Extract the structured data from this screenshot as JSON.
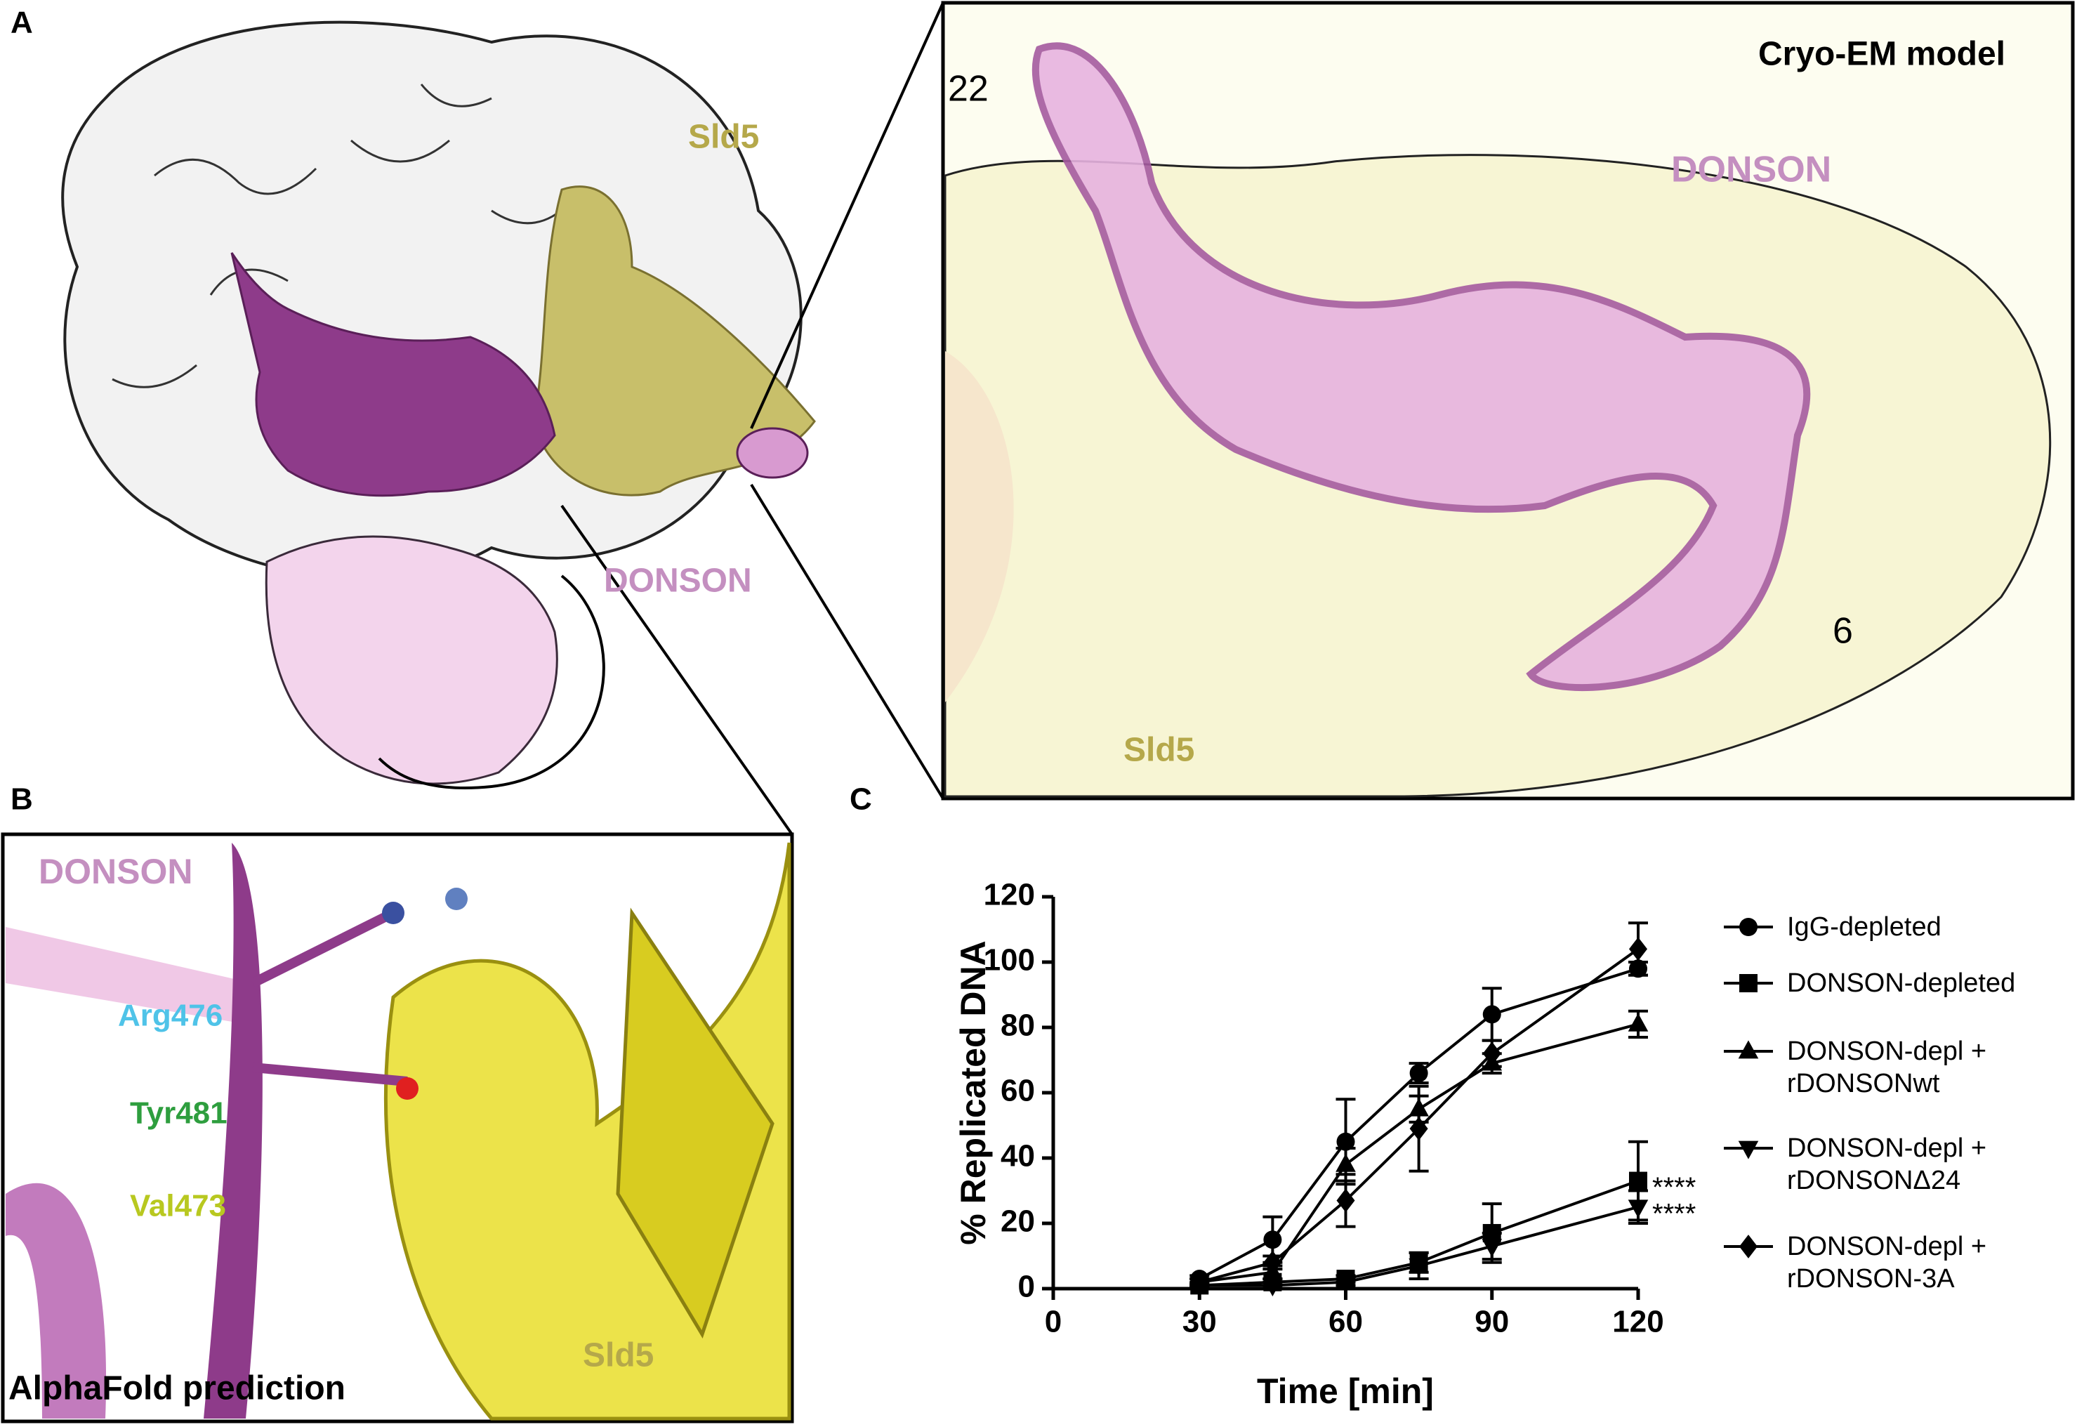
{
  "panels": {
    "a": {
      "label": "A",
      "sld5": "Sld5",
      "donson": "DONSON"
    },
    "zoom": {
      "title": "Cryo-EM model",
      "start": "22",
      "end": "6",
      "donson": "DONSON",
      "sld5": "Sld5"
    },
    "b": {
      "label": "B",
      "donson": "DONSON",
      "residues": [
        "Arg476",
        "Tyr481",
        "Val473"
      ],
      "sld5": "Sld5",
      "caption": "AlphaFold prediction"
    },
    "c": {
      "label": "C"
    }
  },
  "chart_data": {
    "type": "line",
    "xlabel": "Time [min]",
    "ylabel": "% Replicated DNA",
    "xlim": [
      0,
      120
    ],
    "xticks": [
      0,
      30,
      60,
      90,
      120
    ],
    "ylim": [
      0,
      120
    ],
    "yticks": [
      0,
      20,
      40,
      60,
      80,
      100,
      120
    ],
    "x": [
      30,
      45,
      60,
      75,
      90,
      120
    ],
    "series": [
      {
        "name": "IgG-depleted",
        "color": "#000000",
        "marker": "circle",
        "values": [
          3,
          15,
          45,
          66,
          84,
          98
        ],
        "errors": [
          1,
          7,
          13,
          3,
          8,
          2
        ]
      },
      {
        "name": "DONSON-depleted",
        "color": "#000000",
        "marker": "square",
        "values": [
          1,
          2,
          3,
          8,
          17,
          33
        ],
        "errors": [
          0.5,
          1,
          1,
          3,
          9,
          12
        ]
      },
      {
        "name": "DONSON-depl + rDONSONwt",
        "color": "#000000",
        "marker": "triangle-up",
        "values": [
          2,
          5,
          38,
          55,
          69,
          81
        ],
        "errors": [
          1,
          2,
          5,
          4,
          3,
          4
        ]
      },
      {
        "name": "DONSON-depl + rDONSONΔ24",
        "color": "#000000",
        "marker": "triangle-down",
        "values": [
          1,
          1,
          2,
          7,
          13,
          25
        ],
        "errors": [
          0.5,
          1,
          1,
          4,
          4,
          5
        ]
      },
      {
        "name": "DONSON-depl + rDONSON-3A",
        "color": "#000000",
        "marker": "diamond",
        "values": [
          2,
          8,
          27,
          49,
          72,
          104
        ],
        "errors": [
          1,
          2,
          8,
          13,
          4,
          8
        ]
      }
    ],
    "annotations": [
      {
        "text": "****",
        "series": 1
      },
      {
        "text": "****",
        "series": 3
      }
    ]
  }
}
